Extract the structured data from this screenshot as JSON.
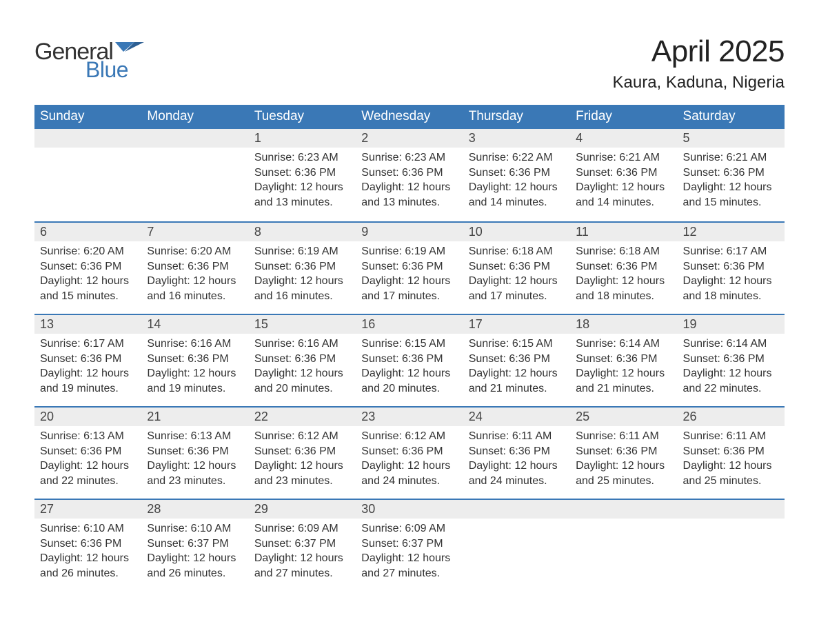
{
  "logo": {
    "general": "General",
    "blue": "Blue",
    "flag_color": "#3a78b6"
  },
  "title": "April 2025",
  "location": "Kaura, Kaduna, Nigeria",
  "colors": {
    "header_bg": "#3a78b6",
    "header_text": "#ffffff",
    "daynum_bg": "#ededed",
    "row_border": "#3a78b6",
    "body_text": "#333333",
    "page_bg": "#ffffff"
  },
  "typography": {
    "month_title_fontsize": 44,
    "location_fontsize": 24,
    "weekday_fontsize": 19,
    "daynum_fontsize": 18,
    "cell_fontsize": 16
  },
  "weekdays": [
    "Sunday",
    "Monday",
    "Tuesday",
    "Wednesday",
    "Thursday",
    "Friday",
    "Saturday"
  ],
  "weeks": [
    [
      null,
      null,
      {
        "day": "1",
        "sunrise": "Sunrise: 6:23 AM",
        "sunset": "Sunset: 6:36 PM",
        "daylight1": "Daylight: 12 hours",
        "daylight2": "and 13 minutes."
      },
      {
        "day": "2",
        "sunrise": "Sunrise: 6:23 AM",
        "sunset": "Sunset: 6:36 PM",
        "daylight1": "Daylight: 12 hours",
        "daylight2": "and 13 minutes."
      },
      {
        "day": "3",
        "sunrise": "Sunrise: 6:22 AM",
        "sunset": "Sunset: 6:36 PM",
        "daylight1": "Daylight: 12 hours",
        "daylight2": "and 14 minutes."
      },
      {
        "day": "4",
        "sunrise": "Sunrise: 6:21 AM",
        "sunset": "Sunset: 6:36 PM",
        "daylight1": "Daylight: 12 hours",
        "daylight2": "and 14 minutes."
      },
      {
        "day": "5",
        "sunrise": "Sunrise: 6:21 AM",
        "sunset": "Sunset: 6:36 PM",
        "daylight1": "Daylight: 12 hours",
        "daylight2": "and 15 minutes."
      }
    ],
    [
      {
        "day": "6",
        "sunrise": "Sunrise: 6:20 AM",
        "sunset": "Sunset: 6:36 PM",
        "daylight1": "Daylight: 12 hours",
        "daylight2": "and 15 minutes."
      },
      {
        "day": "7",
        "sunrise": "Sunrise: 6:20 AM",
        "sunset": "Sunset: 6:36 PM",
        "daylight1": "Daylight: 12 hours",
        "daylight2": "and 16 minutes."
      },
      {
        "day": "8",
        "sunrise": "Sunrise: 6:19 AM",
        "sunset": "Sunset: 6:36 PM",
        "daylight1": "Daylight: 12 hours",
        "daylight2": "and 16 minutes."
      },
      {
        "day": "9",
        "sunrise": "Sunrise: 6:19 AM",
        "sunset": "Sunset: 6:36 PM",
        "daylight1": "Daylight: 12 hours",
        "daylight2": "and 17 minutes."
      },
      {
        "day": "10",
        "sunrise": "Sunrise: 6:18 AM",
        "sunset": "Sunset: 6:36 PM",
        "daylight1": "Daylight: 12 hours",
        "daylight2": "and 17 minutes."
      },
      {
        "day": "11",
        "sunrise": "Sunrise: 6:18 AM",
        "sunset": "Sunset: 6:36 PM",
        "daylight1": "Daylight: 12 hours",
        "daylight2": "and 18 minutes."
      },
      {
        "day": "12",
        "sunrise": "Sunrise: 6:17 AM",
        "sunset": "Sunset: 6:36 PM",
        "daylight1": "Daylight: 12 hours",
        "daylight2": "and 18 minutes."
      }
    ],
    [
      {
        "day": "13",
        "sunrise": "Sunrise: 6:17 AM",
        "sunset": "Sunset: 6:36 PM",
        "daylight1": "Daylight: 12 hours",
        "daylight2": "and 19 minutes."
      },
      {
        "day": "14",
        "sunrise": "Sunrise: 6:16 AM",
        "sunset": "Sunset: 6:36 PM",
        "daylight1": "Daylight: 12 hours",
        "daylight2": "and 19 minutes."
      },
      {
        "day": "15",
        "sunrise": "Sunrise: 6:16 AM",
        "sunset": "Sunset: 6:36 PM",
        "daylight1": "Daylight: 12 hours",
        "daylight2": "and 20 minutes."
      },
      {
        "day": "16",
        "sunrise": "Sunrise: 6:15 AM",
        "sunset": "Sunset: 6:36 PM",
        "daylight1": "Daylight: 12 hours",
        "daylight2": "and 20 minutes."
      },
      {
        "day": "17",
        "sunrise": "Sunrise: 6:15 AM",
        "sunset": "Sunset: 6:36 PM",
        "daylight1": "Daylight: 12 hours",
        "daylight2": "and 21 minutes."
      },
      {
        "day": "18",
        "sunrise": "Sunrise: 6:14 AM",
        "sunset": "Sunset: 6:36 PM",
        "daylight1": "Daylight: 12 hours",
        "daylight2": "and 21 minutes."
      },
      {
        "day": "19",
        "sunrise": "Sunrise: 6:14 AM",
        "sunset": "Sunset: 6:36 PM",
        "daylight1": "Daylight: 12 hours",
        "daylight2": "and 22 minutes."
      }
    ],
    [
      {
        "day": "20",
        "sunrise": "Sunrise: 6:13 AM",
        "sunset": "Sunset: 6:36 PM",
        "daylight1": "Daylight: 12 hours",
        "daylight2": "and 22 minutes."
      },
      {
        "day": "21",
        "sunrise": "Sunrise: 6:13 AM",
        "sunset": "Sunset: 6:36 PM",
        "daylight1": "Daylight: 12 hours",
        "daylight2": "and 23 minutes."
      },
      {
        "day": "22",
        "sunrise": "Sunrise: 6:12 AM",
        "sunset": "Sunset: 6:36 PM",
        "daylight1": "Daylight: 12 hours",
        "daylight2": "and 23 minutes."
      },
      {
        "day": "23",
        "sunrise": "Sunrise: 6:12 AM",
        "sunset": "Sunset: 6:36 PM",
        "daylight1": "Daylight: 12 hours",
        "daylight2": "and 24 minutes."
      },
      {
        "day": "24",
        "sunrise": "Sunrise: 6:11 AM",
        "sunset": "Sunset: 6:36 PM",
        "daylight1": "Daylight: 12 hours",
        "daylight2": "and 24 minutes."
      },
      {
        "day": "25",
        "sunrise": "Sunrise: 6:11 AM",
        "sunset": "Sunset: 6:36 PM",
        "daylight1": "Daylight: 12 hours",
        "daylight2": "and 25 minutes."
      },
      {
        "day": "26",
        "sunrise": "Sunrise: 6:11 AM",
        "sunset": "Sunset: 6:36 PM",
        "daylight1": "Daylight: 12 hours",
        "daylight2": "and 25 minutes."
      }
    ],
    [
      {
        "day": "27",
        "sunrise": "Sunrise: 6:10 AM",
        "sunset": "Sunset: 6:36 PM",
        "daylight1": "Daylight: 12 hours",
        "daylight2": "and 26 minutes."
      },
      {
        "day": "28",
        "sunrise": "Sunrise: 6:10 AM",
        "sunset": "Sunset: 6:37 PM",
        "daylight1": "Daylight: 12 hours",
        "daylight2": "and 26 minutes."
      },
      {
        "day": "29",
        "sunrise": "Sunrise: 6:09 AM",
        "sunset": "Sunset: 6:37 PM",
        "daylight1": "Daylight: 12 hours",
        "daylight2": "and 27 minutes."
      },
      {
        "day": "30",
        "sunrise": "Sunrise: 6:09 AM",
        "sunset": "Sunset: 6:37 PM",
        "daylight1": "Daylight: 12 hours",
        "daylight2": "and 27 minutes."
      },
      null,
      null,
      null
    ]
  ]
}
